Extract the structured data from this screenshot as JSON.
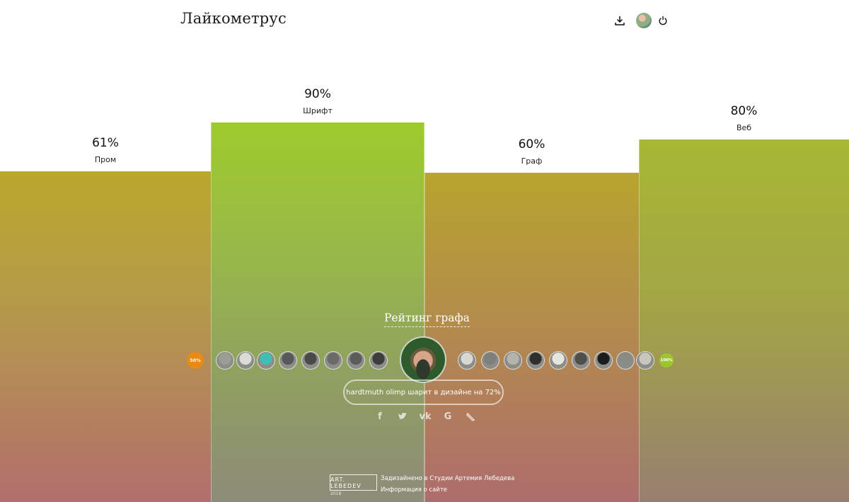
{
  "header": {
    "title": "Лайкометрус",
    "download_icon": "download-icon",
    "power_icon": "power-icon"
  },
  "chart_data": {
    "type": "bar",
    "categories": [
      "Пром",
      "Шрифт",
      "Граф",
      "Веб"
    ],
    "values": [
      61,
      90,
      60,
      80
    ],
    "value_labels": [
      "61%",
      "90%",
      "60%",
      "80%"
    ],
    "ylim": [
      0,
      100
    ]
  },
  "rating": {
    "title": "Рейтинг графа",
    "badge_low": "50%",
    "badge_high": "100%",
    "verdict": "hardtmuth olimp шарит в дизайне на 72%"
  },
  "share_icons": [
    "facebook-icon",
    "twitter-icon",
    "vk-icon",
    "google-icon",
    "livejournal-icon"
  ],
  "footer": {
    "logo": "ART. LEBEDEV",
    "year": "2018",
    "credit": "Задизайнено в Студии Артемия Лебедева",
    "info": "Информация о сайте"
  },
  "colors": {
    "badge_low": "#e98a14",
    "badge_high": "#9dc52e"
  }
}
